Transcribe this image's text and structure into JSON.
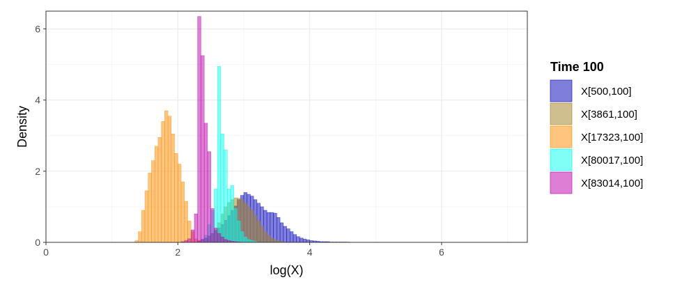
{
  "chart_data": {
    "type": "histogram",
    "xlabel": "log(X)",
    "ylabel": "Density",
    "xlim": [
      0,
      7.3
    ],
    "ylim": [
      0,
      6.5
    ],
    "x_ticks": [
      0,
      2,
      4,
      6
    ],
    "y_ticks": [
      0,
      2,
      4,
      6
    ],
    "grid": true,
    "legend": {
      "title": "Time 100",
      "position": "right"
    },
    "bin_width": 0.05,
    "series": [
      {
        "name": "X[500,100]",
        "color": "#0000B8",
        "bin_start": 2.3,
        "density": [
          0.04,
          0.08,
          0.12,
          0.18,
          0.25,
          0.32,
          0.4,
          0.5,
          0.62,
          0.75,
          0.9,
          1.02,
          1.2,
          1.32,
          1.4,
          1.35,
          1.3,
          1.2,
          1.1,
          1.0,
          0.9,
          0.84,
          0.84,
          0.82,
          0.7,
          0.55,
          0.45,
          0.38,
          0.3,
          0.22,
          0.16,
          0.12,
          0.09,
          0.07,
          0.05,
          0.04,
          0.03,
          0.02,
          0.02,
          0.02,
          0.01,
          0.01,
          0.01,
          0.01,
          0.01,
          0.01
        ]
      },
      {
        "name": "X[3861,100]",
        "color": "#A08020",
        "bin_start": 2.4,
        "density": [
          0.04,
          0.1,
          0.2,
          0.35,
          0.55,
          0.8,
          1.0,
          1.12,
          1.2,
          1.25,
          1.24,
          1.2,
          1.1,
          1.0,
          0.9,
          0.75,
          0.6,
          0.45,
          0.3,
          0.2,
          0.12,
          0.07,
          0.04,
          0.02
        ]
      },
      {
        "name": "X[17323,100]",
        "color": "#FF8C00",
        "bin_start": 1.35,
        "density": [
          0.05,
          0.3,
          0.9,
          1.45,
          1.95,
          2.3,
          2.7,
          2.95,
          3.4,
          3.7,
          3.55,
          3.05,
          2.5,
          2.2,
          1.7,
          1.15,
          0.6,
          0.3,
          0.1,
          0.05,
          0.02
        ]
      },
      {
        "name": "X[80017,100]",
        "color": "#00FFEE",
        "bin_start": 2.35,
        "density": [
          0.05,
          0.2,
          0.5,
          0.9,
          1.5,
          4.95,
          3.05,
          2.6,
          1.5,
          1.6,
          0.95,
          0.6,
          0.3,
          0.15,
          0.08,
          0.05,
          0.03
        ]
      },
      {
        "name": "X[83014,100]",
        "color": "#BB00AA",
        "bin_start": 2.05,
        "density": [
          0.02,
          0.05,
          0.1,
          0.35,
          0.8,
          6.35,
          5.25,
          3.35,
          2.55,
          0.95,
          0.4,
          0.25,
          0.15,
          0.08,
          0.05,
          0.03,
          0.02,
          0.01
        ]
      }
    ]
  }
}
